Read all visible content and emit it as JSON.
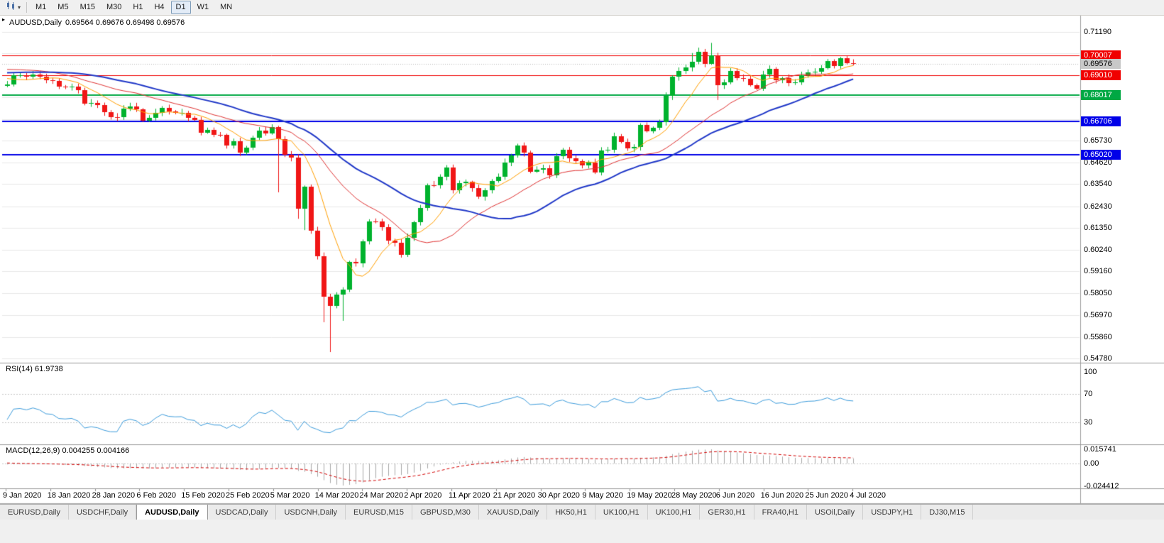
{
  "toolbar": {
    "timeframes": [
      "M1",
      "M5",
      "M15",
      "M30",
      "H1",
      "H4",
      "D1",
      "W1",
      "MN"
    ],
    "active_timeframe": "D1"
  },
  "chart": {
    "title": "AUDUSD,Daily",
    "ohlc": "0.69564 0.69676 0.69498 0.69576",
    "scale": {
      "top_price": 0.7119,
      "bottom_price": 0.5478
    },
    "axis_labels": [
      {
        "text": "0.71190",
        "price": 0.7119
      },
      {
        "text": "0.65730",
        "price": 0.6573
      },
      {
        "text": "0.64620",
        "price": 0.6462
      },
      {
        "text": "0.63540",
        "price": 0.6354
      },
      {
        "text": "0.62430",
        "price": 0.6243
      },
      {
        "text": "0.61350",
        "price": 0.6135
      },
      {
        "text": "0.60240",
        "price": 0.6024
      },
      {
        "text": "0.59160",
        "price": 0.5916
      },
      {
        "text": "0.58050",
        "price": 0.5805
      },
      {
        "text": "0.56970",
        "price": 0.5697
      },
      {
        "text": "0.55860",
        "price": 0.5586
      },
      {
        "text": "0.54780",
        "price": 0.5478
      }
    ],
    "grid_prices": [
      0.7119,
      0.7011,
      0.69,
      0.6792,
      0.6681,
      0.6573,
      0.6462,
      0.6354,
      0.6243,
      0.6135,
      0.6024,
      0.5916,
      0.5805,
      0.5697,
      0.5586,
      0.5478
    ],
    "price_lines": [
      {
        "price": 0.70007,
        "label": "0.70007",
        "color": "#f00000",
        "width": 1
      },
      {
        "price": 0.6901,
        "label": "0.69010",
        "color": "#f00000",
        "width": 1
      },
      {
        "price": 0.68017,
        "label": "0.68017",
        "color": "#00a843",
        "width": 2
      },
      {
        "price": 0.66706,
        "label": "0.66706",
        "color": "#0000e8",
        "width": 2
      },
      {
        "price": 0.6502,
        "label": "0.65020",
        "color": "#0000e8",
        "width": 2
      }
    ],
    "bid_line": {
      "price": 0.69576,
      "label": "0.69576",
      "badge_bg": "#c8c8c8",
      "badge_fg": "#000000"
    }
  },
  "chart_data": {
    "type": "candlestick",
    "symbol": "AUDUSD",
    "period": "Daily",
    "title": "AUDUSD,Daily 0.69564 0.69676 0.69498 0.69576",
    "ylim": [
      0.5478,
      0.7119
    ],
    "x_labels": [
      "9 Jan 2020",
      "18 Jan 2020",
      "28 Jan 2020",
      "6 Feb 2020",
      "15 Feb 2020",
      "25 Feb 2020",
      "5 Mar 2020",
      "14 Mar 2020",
      "24 Mar 2020",
      "2 Apr 2020",
      "11 Apr 2020",
      "21 Apr 2020",
      "30 Apr 2020",
      "9 May 2020",
      "19 May 2020",
      "28 May 2020",
      "6 Jun 2020",
      "16 Jun 2020",
      "25 Jun 2020",
      "4 Jul 2020"
    ],
    "first_open": 0.6848,
    "close": [
      0.6856,
      0.69,
      0.6903,
      0.6896,
      0.6905,
      0.6896,
      0.6875,
      0.6872,
      0.6846,
      0.6843,
      0.6845,
      0.6827,
      0.6759,
      0.6764,
      0.6752,
      0.6717,
      0.6691,
      0.669,
      0.6735,
      0.6745,
      0.673,
      0.6674,
      0.6686,
      0.6714,
      0.6737,
      0.6718,
      0.6713,
      0.6714,
      0.6686,
      0.6678,
      0.6614,
      0.6627,
      0.6602,
      0.66,
      0.6549,
      0.6568,
      0.6513,
      0.6537,
      0.6588,
      0.6624,
      0.661,
      0.664,
      0.6582,
      0.6503,
      0.6488,
      0.623,
      0.634,
      0.612,
      0.5992,
      0.579,
      0.5742,
      0.58,
      0.5823,
      0.5962,
      0.5955,
      0.6066,
      0.6167,
      0.6166,
      0.6139,
      0.607,
      0.6059,
      0.5998,
      0.6086,
      0.6162,
      0.6234,
      0.635,
      0.6348,
      0.639,
      0.6438,
      0.6322,
      0.636,
      0.6365,
      0.6335,
      0.629,
      0.6323,
      0.637,
      0.639,
      0.6463,
      0.6497,
      0.655,
      0.6511,
      0.6417,
      0.6428,
      0.6435,
      0.6398,
      0.6495,
      0.6528,
      0.6485,
      0.647,
      0.645,
      0.6463,
      0.6413,
      0.6525,
      0.6526,
      0.6595,
      0.6565,
      0.6534,
      0.6542,
      0.665,
      0.662,
      0.6637,
      0.6667,
      0.6797,
      0.6893,
      0.6922,
      0.694,
      0.6968,
      0.7018,
      0.696,
      0.7,
      0.685,
      0.6867,
      0.6922,
      0.6886,
      0.6882,
      0.6853,
      0.6834,
      0.6906,
      0.6932,
      0.6875,
      0.6886,
      0.6863,
      0.6867,
      0.6903,
      0.6916,
      0.692,
      0.6938,
      0.6973,
      0.6946,
      0.6986,
      0.6963,
      0.69576
    ],
    "warmup_close": [
      0.684,
      0.685,
      0.6846,
      0.6852,
      0.686,
      0.6855,
      0.6862,
      0.687,
      0.6866,
      0.6875,
      0.688,
      0.6885,
      0.689,
      0.6882,
      0.6878,
      0.6885,
      0.6895,
      0.69,
      0.6905,
      0.691,
      0.6916,
      0.692,
      0.6928,
      0.6935,
      0.6942,
      0.695,
      0.696,
      0.697,
      0.6985,
      0.7,
      0.7023,
      0.698,
      0.695,
      0.693,
      0.692,
      0.69,
      0.6885,
      0.6874,
      0.686,
      0.6856
    ],
    "wick_overrides": {
      "42": {
        "low": 0.6313
      },
      "45": {
        "low": 0.618
      },
      "46": {
        "low": 0.6123
      },
      "49": {
        "low": 0.566
      },
      "50": {
        "low": 0.551
      },
      "52": {
        "low": 0.5667
      },
      "106": {
        "high": 0.7013
      },
      "107": {
        "high": 0.704
      },
      "109": {
        "high": 0.7064
      },
      "110": {
        "low": 0.6777
      }
    },
    "bull_color": "#00b22d",
    "bear_color": "#f01616",
    "moving_averages": [
      {
        "period": 8,
        "color": "#ff9f00",
        "width": 1
      },
      {
        "period": 21,
        "color": "#e03232",
        "width": 1
      },
      {
        "period": 34,
        "color": "#2038c8",
        "width": 2
      }
    ]
  },
  "rsi": {
    "label": "RSI(14) 61.9738",
    "period": 14,
    "value": 61.9738,
    "color": "#3c9cdc",
    "levels": [
      {
        "text": "100",
        "value": 100
      },
      {
        "text": "70",
        "value": 70
      },
      {
        "text": "30",
        "value": 30
      }
    ]
  },
  "macd": {
    "label": "MACD(12,26,9) 0.004255 0.004166",
    "fast": 12,
    "slow": 26,
    "signal": 9,
    "macd_value": 0.004255,
    "signal_value": 0.004166,
    "scale_labels": {
      "top": "0.015741",
      "zero": "0.00",
      "bottom": "-0.024412"
    },
    "histogram_color": "#a8a8a8",
    "signal_color": "#d40000"
  },
  "tabs": [
    "EURUSD,Daily",
    "USDCHF,Daily",
    "AUDUSD,Daily",
    "USDCAD,Daily",
    "USDCNH,Daily",
    "EURUSD,M15",
    "GBPUSD,M30",
    "XAUUSD,Daily",
    "HK50,H1",
    "UK100,H1",
    "UK100,H1",
    "GER30,H1",
    "FRA40,H1",
    "USOil,Daily",
    "USDJPY,H1",
    "DJ30,M15"
  ],
  "active_tab_index": 2
}
